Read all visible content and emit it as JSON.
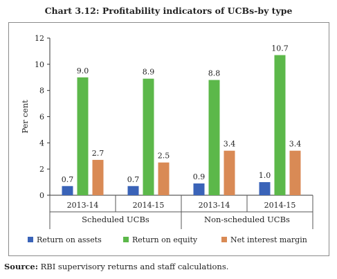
{
  "title": "Chart 3.12: Profitability indicators of UCBs-by type",
  "source_label": "Source:",
  "source_text": "RBI supervisory returns and staff calculations.",
  "chart_data": {
    "type": "bar",
    "title": "Chart 3.12: Profitability indicators of UCBs-by type",
    "ylabel": "Per cent",
    "xlabel": "",
    "ylim": [
      0,
      12
    ],
    "yticks": [
      0,
      2,
      4,
      6,
      8,
      10,
      12
    ],
    "categories": [
      "2013-14",
      "2014-15",
      "2013-14",
      "2014-15"
    ],
    "groups": [
      {
        "label": "Scheduled UCBs",
        "categories": [
          0,
          1
        ]
      },
      {
        "label": "Non-scheduled UCBs",
        "categories": [
          2,
          3
        ]
      }
    ],
    "series": [
      {
        "name": "Return on assets",
        "color": "#3a63b8",
        "values": [
          0.7,
          0.7,
          0.9,
          1.0
        ],
        "labels": [
          "0.7",
          "0.7",
          "0.9",
          "1.0"
        ]
      },
      {
        "name": "Return on equity",
        "color": "#5cb84a",
        "values": [
          9.0,
          8.9,
          8.8,
          10.7
        ],
        "labels": [
          "9.0",
          "8.9",
          "8.8",
          "10.7"
        ]
      },
      {
        "name": "Net interest margin",
        "color": "#d98a55",
        "values": [
          2.7,
          2.5,
          3.4,
          3.4
        ],
        "labels": [
          "2.7",
          "2.5",
          "3.4",
          "3.4"
        ]
      }
    ],
    "legend": "bottom",
    "grid": false
  }
}
